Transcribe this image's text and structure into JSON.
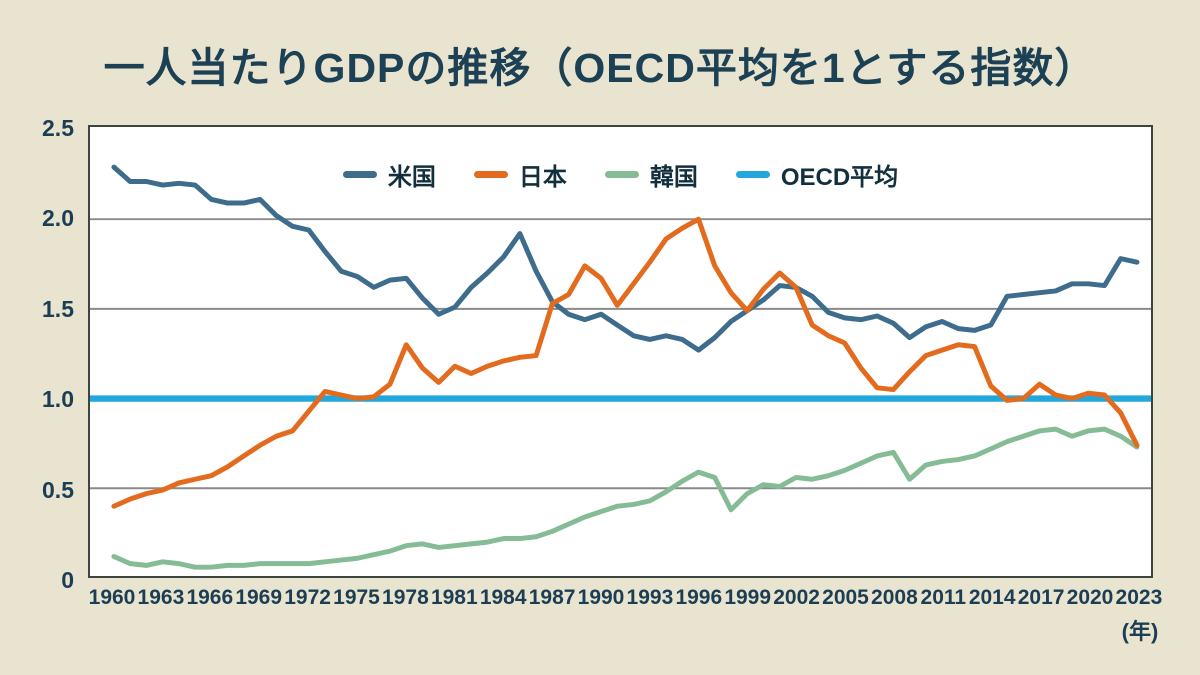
{
  "title": "一人当たりGDPの推移（OECD平均を1とする指数）",
  "colors": {
    "background": "#e9e4d0",
    "plot_background": "#ffffff",
    "plot_border": "#3d453f",
    "gridline": "#8a8a8a",
    "text": "#1c3e54"
  },
  "chart_data": {
    "type": "line",
    "title": "一人当たりGDPの推移（OECD平均を1とする指数）",
    "xlabel": "(年)",
    "ylabel": "",
    "x_start": 1960,
    "x_end": 2023,
    "ylim": [
      0,
      2.5
    ],
    "grid": "horizontal",
    "y_gridlines": [
      0.5,
      1.0,
      1.5,
      2.0
    ],
    "y_tick_values": [
      0,
      0.5,
      1.0,
      1.5,
      2.0,
      2.5
    ],
    "y_tick_labels": [
      "0",
      "0.5",
      "1.0",
      "1.5",
      "2.0",
      "2.5"
    ],
    "x_tick_labels": [
      "1960",
      "1963",
      "1966",
      "1969",
      "1972",
      "1975",
      "1978",
      "1981",
      "1984",
      "1987",
      "1990",
      "1993",
      "1996",
      "1999",
      "2002",
      "2005",
      "2008",
      "2011",
      "2014",
      "2017",
      "2020",
      "2023"
    ],
    "legend_position": "top-center-inside",
    "series": [
      {
        "id": "us",
        "name": "米国",
        "color": "#3d6c8d",
        "values": [
          2.29,
          2.21,
          2.21,
          2.19,
          2.2,
          2.19,
          2.11,
          2.09,
          2.09,
          2.11,
          2.02,
          1.96,
          1.94,
          1.82,
          1.71,
          1.68,
          1.62,
          1.66,
          1.67,
          1.56,
          1.47,
          1.51,
          1.62,
          1.7,
          1.79,
          1.92,
          1.71,
          1.54,
          1.47,
          1.44,
          1.47,
          1.41,
          1.35,
          1.33,
          1.35,
          1.33,
          1.27,
          1.34,
          1.43,
          1.49,
          1.55,
          1.63,
          1.62,
          1.57,
          1.48,
          1.45,
          1.44,
          1.46,
          1.42,
          1.34,
          1.4,
          1.43,
          1.39,
          1.38,
          1.41,
          1.57,
          1.58,
          1.59,
          1.6,
          1.64,
          1.64,
          1.63,
          1.78,
          1.76
        ]
      },
      {
        "id": "japan",
        "name": "日本",
        "color": "#e26b1e",
        "values": [
          0.4,
          0.44,
          0.47,
          0.49,
          0.53,
          0.55,
          0.57,
          0.62,
          0.68,
          0.74,
          0.79,
          0.82,
          0.93,
          1.04,
          1.02,
          1.0,
          1.01,
          1.08,
          1.3,
          1.17,
          1.09,
          1.18,
          1.14,
          1.18,
          1.21,
          1.23,
          1.24,
          1.53,
          1.58,
          1.74,
          1.67,
          1.52,
          1.64,
          1.76,
          1.89,
          1.95,
          2.0,
          1.74,
          1.59,
          1.49,
          1.61,
          1.7,
          1.62,
          1.41,
          1.35,
          1.31,
          1.17,
          1.06,
          1.05,
          1.15,
          1.24,
          1.27,
          1.3,
          1.29,
          1.07,
          0.99,
          1.0,
          1.08,
          1.02,
          1.0,
          1.03,
          1.02,
          0.92,
          0.74
        ]
      },
      {
        "id": "korea",
        "name": "韓国",
        "color": "#85bc95",
        "values": [
          0.12,
          0.08,
          0.07,
          0.09,
          0.08,
          0.06,
          0.06,
          0.07,
          0.07,
          0.08,
          0.08,
          0.08,
          0.08,
          0.09,
          0.1,
          0.11,
          0.13,
          0.15,
          0.18,
          0.19,
          0.17,
          0.18,
          0.19,
          0.2,
          0.22,
          0.22,
          0.23,
          0.26,
          0.3,
          0.34,
          0.37,
          0.4,
          0.41,
          0.43,
          0.48,
          0.54,
          0.59,
          0.56,
          0.38,
          0.47,
          0.52,
          0.51,
          0.56,
          0.55,
          0.57,
          0.6,
          0.64,
          0.68,
          0.7,
          0.55,
          0.63,
          0.65,
          0.66,
          0.68,
          0.72,
          0.76,
          0.79,
          0.82,
          0.83,
          0.79,
          0.82,
          0.83,
          0.79,
          0.73
        ]
      },
      {
        "id": "oecd-average",
        "name": "OECD平均",
        "color": "#22a7dc",
        "constant_value": 1.0
      }
    ]
  }
}
